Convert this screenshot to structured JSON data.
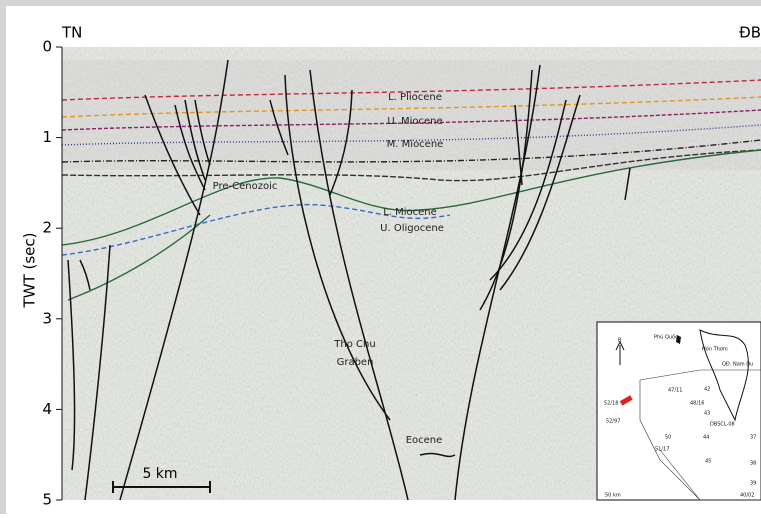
{
  "figure": {
    "left_label": "TN",
    "right_label": "ĐB",
    "axis": {
      "label": "TWT (sec)",
      "ylim": [
        0,
        5
      ],
      "ticks": [
        0,
        1,
        2,
        3,
        4,
        5
      ]
    },
    "annotations": [
      "L. Pliocene",
      "U. Miocene",
      "M. Miocene",
      "Pre-Cenozoic",
      "L. Miocene",
      "U. Oligocene",
      "Tho Chu",
      "Graben",
      "Eocene"
    ],
    "scale_bar": "5 km",
    "inset": {
      "labels": [
        "Phú Quốc",
        "Hòn Thơm",
        "QĐ. Nam Du",
        "47/11",
        "42",
        "48/16",
        "52/18",
        "52/97",
        "43",
        "50",
        "44",
        "37",
        "51/17",
        "45",
        "38",
        "39",
        "40/02",
        "DBSCL-08",
        "50 km",
        "B"
      ]
    }
  }
}
